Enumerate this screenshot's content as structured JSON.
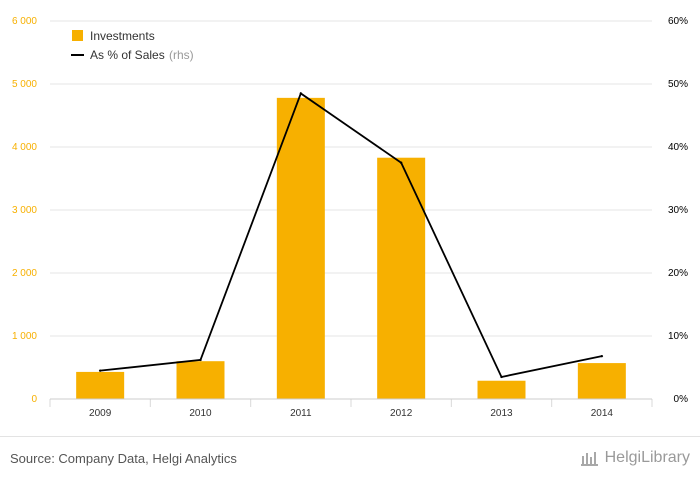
{
  "colors": {
    "bar": "#F7B000",
    "line": "#000000",
    "left_axis_text": "#F7B000",
    "right_axis_text": "#000000",
    "grid": "#e6e6e6",
    "muted": "#9a9a9a"
  },
  "chart_data": {
    "type": "bar",
    "title": "",
    "xlabel": "",
    "ylabel": "",
    "categories": [
      "2009",
      "2010",
      "2011",
      "2012",
      "2013",
      "2014"
    ],
    "series": [
      {
        "name": "Investments",
        "type": "bar",
        "axis": "left",
        "values": [
          430,
          600,
          4780,
          3830,
          290,
          570
        ]
      },
      {
        "name": "As % of Sales",
        "name_suffix": "(rhs)",
        "type": "line",
        "axis": "right",
        "values": [
          4.5,
          6.2,
          48.5,
          37.5,
          3.5,
          6.8
        ]
      }
    ],
    "left_axis": {
      "ylim": [
        0,
        6000
      ],
      "ticks": [
        0,
        1000,
        2000,
        3000,
        4000,
        5000,
        6000
      ],
      "tick_labels": [
        "0",
        "1 000",
        "2 000",
        "3 000",
        "4 000",
        "5 000",
        "6 000"
      ]
    },
    "right_axis": {
      "ylim": [
        0,
        60
      ],
      "ticks": [
        0,
        10,
        20,
        30,
        40,
        50,
        60
      ],
      "tick_labels": [
        "0%",
        "10%",
        "20%",
        "30%",
        "40%",
        "50%",
        "60%"
      ]
    },
    "grid": true,
    "legend_position": "top-left"
  },
  "footer": {
    "source": "Source: Company Data, Helgi Analytics",
    "brand": "HelgiLibrary"
  }
}
